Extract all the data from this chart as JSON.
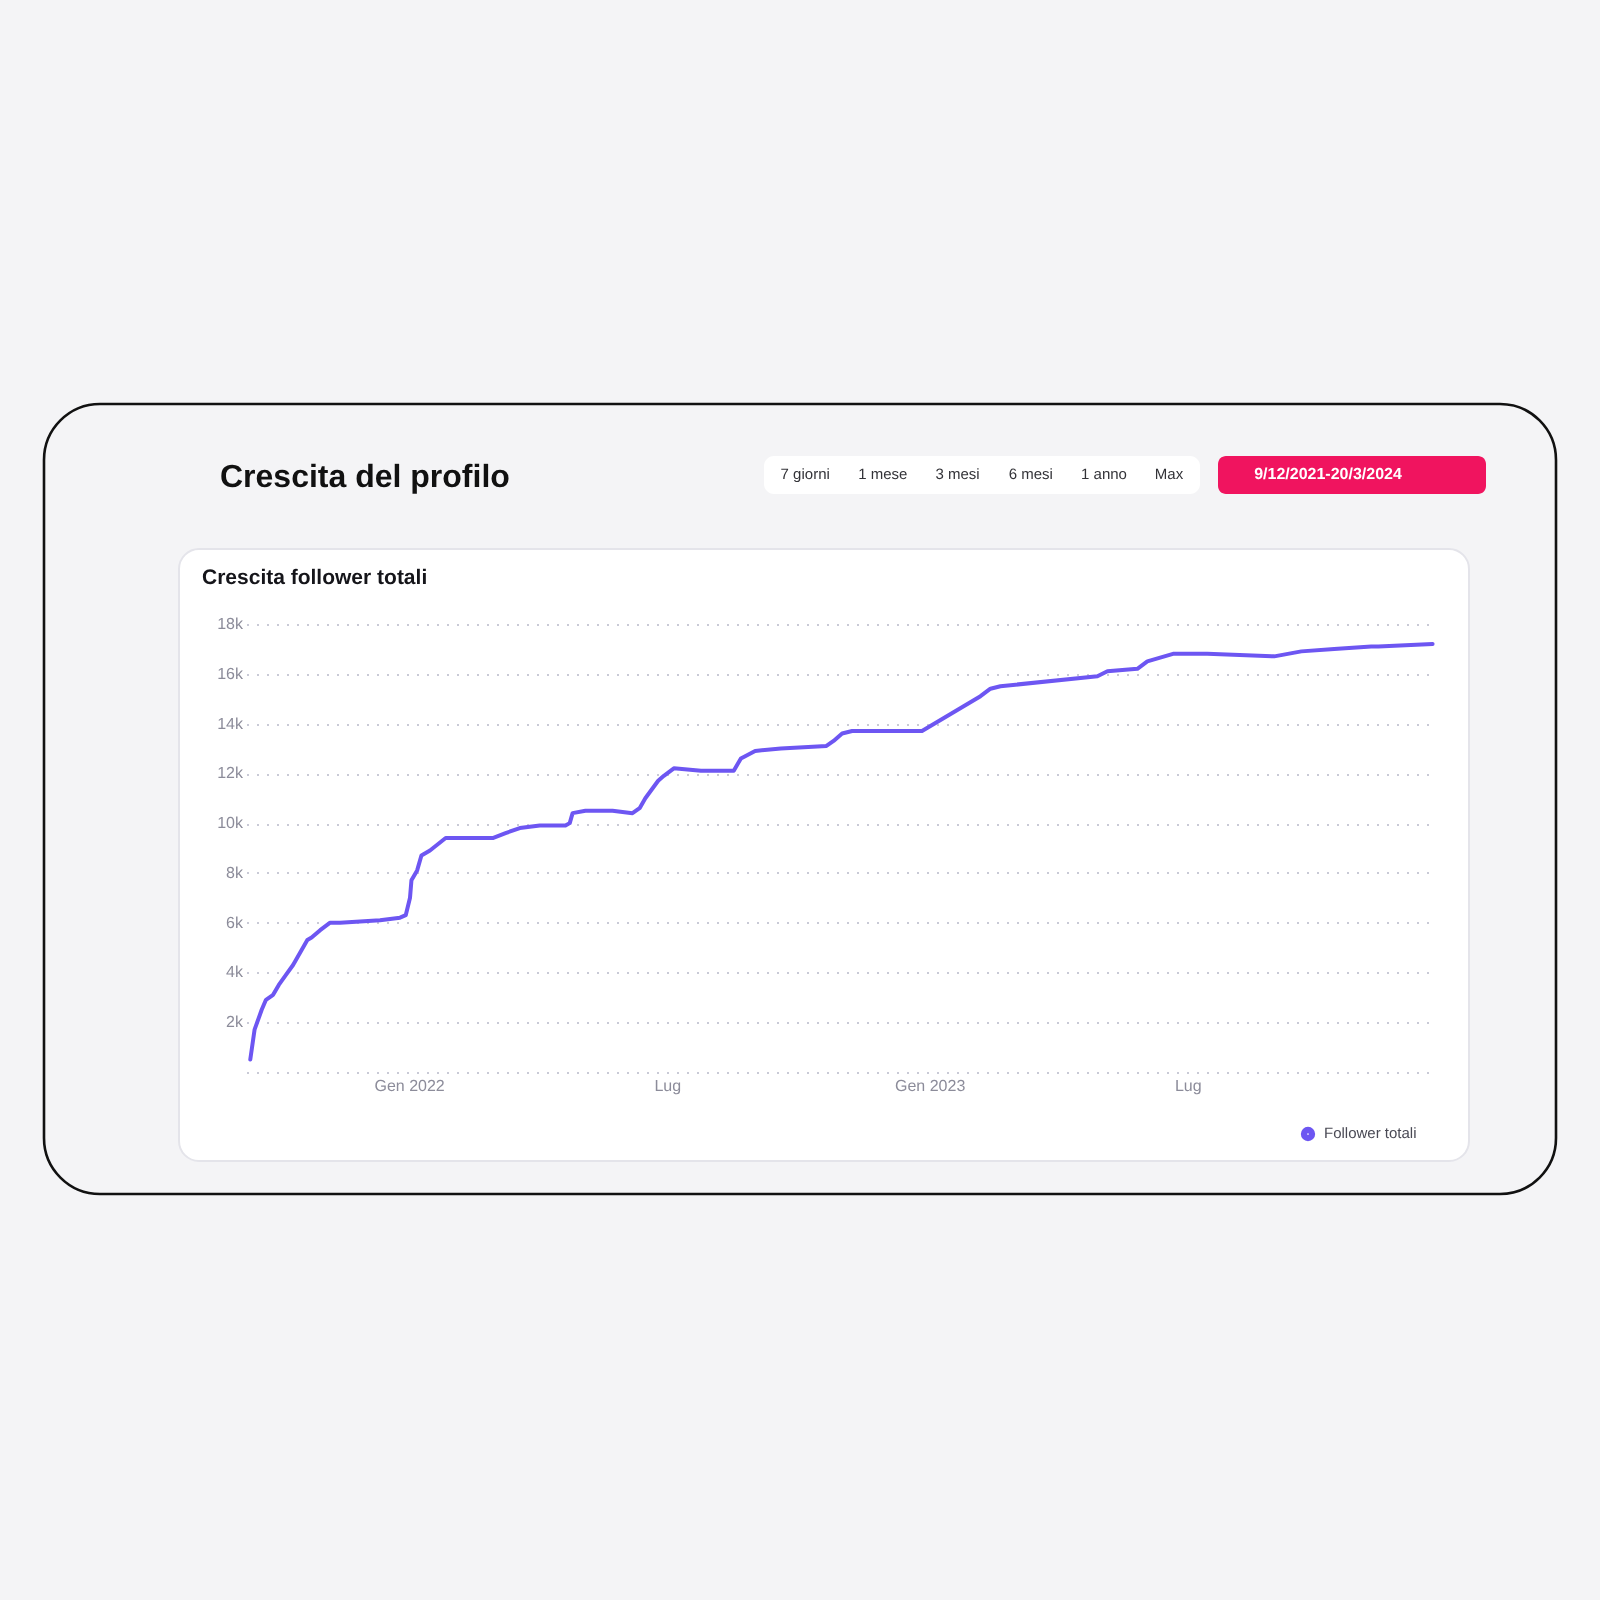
{
  "chart_data": {
    "type": "line",
    "title": "Crescita del profilo",
    "subtitle": "Crescita follower totali",
    "annotations": [
      "7 giorni",
      "1 mese",
      "3 mesi",
      "6 mesi",
      "1 anno",
      "Max",
      "9/12/2021-20/3/2024"
    ],
    "series": [
      {
        "name": "Follower totali",
        "color": "#6d56f2",
        "x": [
          "2021-09-12",
          "2021-09-15",
          "2021-09-20",
          "2021-09-23",
          "2021-09-28",
          "2021-10-02",
          "2021-10-07",
          "2021-10-12",
          "2021-10-22",
          "2021-10-25",
          "2021-10-31",
          "2021-11-07",
          "2021-11-14",
          "2021-12-12",
          "2021-12-26",
          "2021-12-30",
          "2022-01-02",
          "2022-01-03",
          "2022-01-07",
          "2022-01-10",
          "2022-01-16",
          "2022-01-27",
          "2022-03-01",
          "2022-03-10",
          "2022-03-20",
          "2022-04-03",
          "2022-04-21",
          "2022-04-24",
          "2022-04-26",
          "2022-05-05",
          "2022-05-24",
          "2022-06-07",
          "2022-06-12",
          "2022-06-16",
          "2022-06-25",
          "2022-06-29",
          "2022-07-06",
          "2022-07-25",
          "2022-08-17",
          "2022-08-22",
          "2022-09-01",
          "2022-09-19",
          "2022-10-21",
          "2022-10-26",
          "2022-11-01",
          "2022-11-08",
          "2022-12-27",
          "2023-02-06",
          "2023-02-13",
          "2023-02-20",
          "2023-04-29",
          "2023-05-06",
          "2023-05-27",
          "2023-06-03",
          "2023-06-21",
          "2023-07-15",
          "2023-08-31",
          "2023-09-19",
          "2023-10-12",
          "2023-11-07",
          "2023-11-12",
          "2023-12-20"
        ],
        "values": [
          500,
          1700,
          2500,
          2900,
          3100,
          3500,
          3900,
          4300,
          5300,
          5400,
          5700,
          6000,
          6000,
          6100,
          6200,
          6300,
          7000,
          7700,
          8100,
          8700,
          8900,
          9400,
          9400,
          9600,
          9800,
          9900,
          9900,
          10000,
          10400,
          10500,
          10500,
          10400,
          10600,
          11000,
          11700,
          11900,
          12200,
          12100,
          12100,
          12600,
          12900,
          13000,
          13100,
          13300,
          13600,
          13700,
          13700,
          15100,
          15400,
          15500,
          15900,
          16100,
          16200,
          16500,
          16800,
          16800,
          16700,
          16900,
          17000,
          17100,
          17100,
          17200
        ]
      }
    ],
    "xlim": [
      "2021-09-09",
      "2023-12-21"
    ],
    "xticks": [
      {
        "value": "2022-01-01",
        "label": "Gen 2022"
      },
      {
        "value": "2022-07-01",
        "label": "Lug"
      },
      {
        "value": "2023-01-01",
        "label": "Gen 2023"
      },
      {
        "value": "2023-07-01",
        "label": "Lug"
      }
    ],
    "ylim": [
      0,
      18000
    ],
    "yticks": [
      {
        "value": 0,
        "label": null
      },
      {
        "value": 2000,
        "label": "2k"
      },
      {
        "value": 4000,
        "label": "4k"
      },
      {
        "value": 6000,
        "label": "6k"
      },
      {
        "value": 8000,
        "label": "8k"
      },
      {
        "value": 10000,
        "label": "10k"
      },
      {
        "value": 12000,
        "label": "12k"
      },
      {
        "value": 14000,
        "label": "14k"
      },
      {
        "value": 16000,
        "label": "16k"
      },
      {
        "value": 18000,
        "label": "18k"
      }
    ],
    "grid": "y",
    "legend": "bottom right",
    "line_style": "solid"
  }
}
